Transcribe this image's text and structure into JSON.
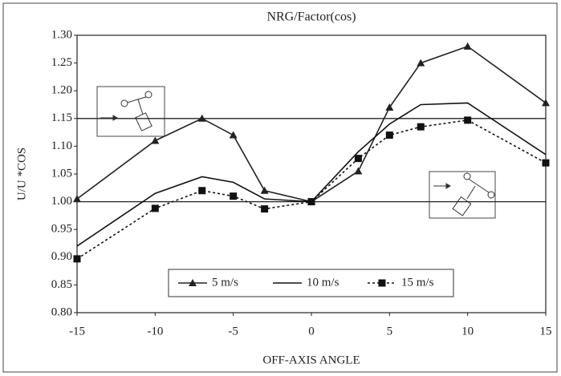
{
  "chart_data": {
    "type": "line",
    "title": "NRG/Factor(cos)",
    "x_label": "OFF-AXIS ANGLE",
    "y_label": "U/U *COS",
    "x": [
      -15,
      -10,
      -7,
      -5,
      -3,
      0,
      3,
      5,
      7,
      10,
      15
    ],
    "series": [
      {
        "name": "5 m/s",
        "color": "#222222",
        "marker": "triangle",
        "dash": "solid",
        "values": [
          1.005,
          1.11,
          1.15,
          1.12,
          1.02,
          1.0,
          1.055,
          1.17,
          1.25,
          1.28,
          1.178
        ]
      },
      {
        "name": "10 m/s",
        "color": "#111111",
        "marker": "none",
        "dash": "solid",
        "values": [
          0.92,
          1.015,
          1.045,
          1.035,
          1.005,
          1.0,
          1.09,
          1.14,
          1.175,
          1.178,
          1.085
        ]
      },
      {
        "name": "15 m/s",
        "color": "#111111",
        "marker": "square",
        "dash": "dotted",
        "values": [
          0.897,
          0.988,
          1.02,
          1.01,
          0.987,
          1.0,
          1.078,
          1.12,
          1.135,
          1.147,
          1.07
        ]
      }
    ],
    "xlim": [
      -15,
      15
    ],
    "xticks": [
      -15,
      -10,
      -5,
      0,
      5,
      10,
      15
    ],
    "ylim": [
      0.8,
      1.3
    ],
    "yticks": [
      {
        "value": 0.8,
        "label": "0.80"
      },
      {
        "value": 0.85,
        "label": "0.85"
      },
      {
        "value": 0.9,
        "label": "0.90"
      },
      {
        "value": 0.95,
        "label": "0.95"
      },
      {
        "value": 1.0,
        "label": "1.00"
      },
      {
        "value": 1.05,
        "label": "1.05"
      },
      {
        "value": 1.1,
        "label": "1.10"
      },
      {
        "value": 1.15,
        "label": "1.15"
      },
      {
        "value": 1.2,
        "label": "1.20"
      },
      {
        "value": 1.25,
        "label": "1.25"
      },
      {
        "value": 1.3,
        "label": "1.30"
      }
    ],
    "reference_lines": [
      1.0,
      1.15
    ]
  }
}
